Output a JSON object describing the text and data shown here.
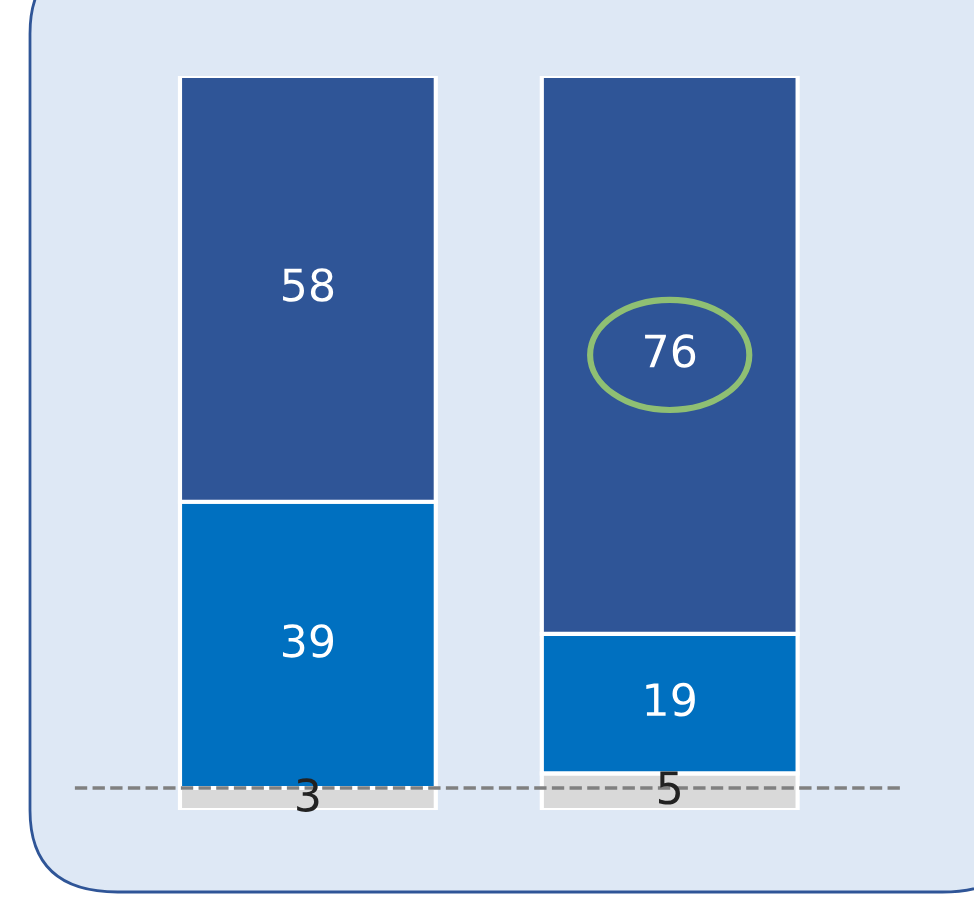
{
  "chart_data": {
    "type": "bar",
    "stacked": true,
    "categories": [
      null,
      null
    ],
    "series": [
      {
        "color": "#d9d9d9",
        "values": [
          3,
          5
        ]
      },
      {
        "color": "#0070c0",
        "values": [
          39,
          19
        ]
      },
      {
        "color": "#2f5597",
        "values": [
          58,
          76
        ]
      }
    ],
    "data_labels": true,
    "ref_lines": [
      {
        "axis": "y",
        "value": 3,
        "color": "#808080",
        "line_style": "dashed"
      }
    ]
  }
}
